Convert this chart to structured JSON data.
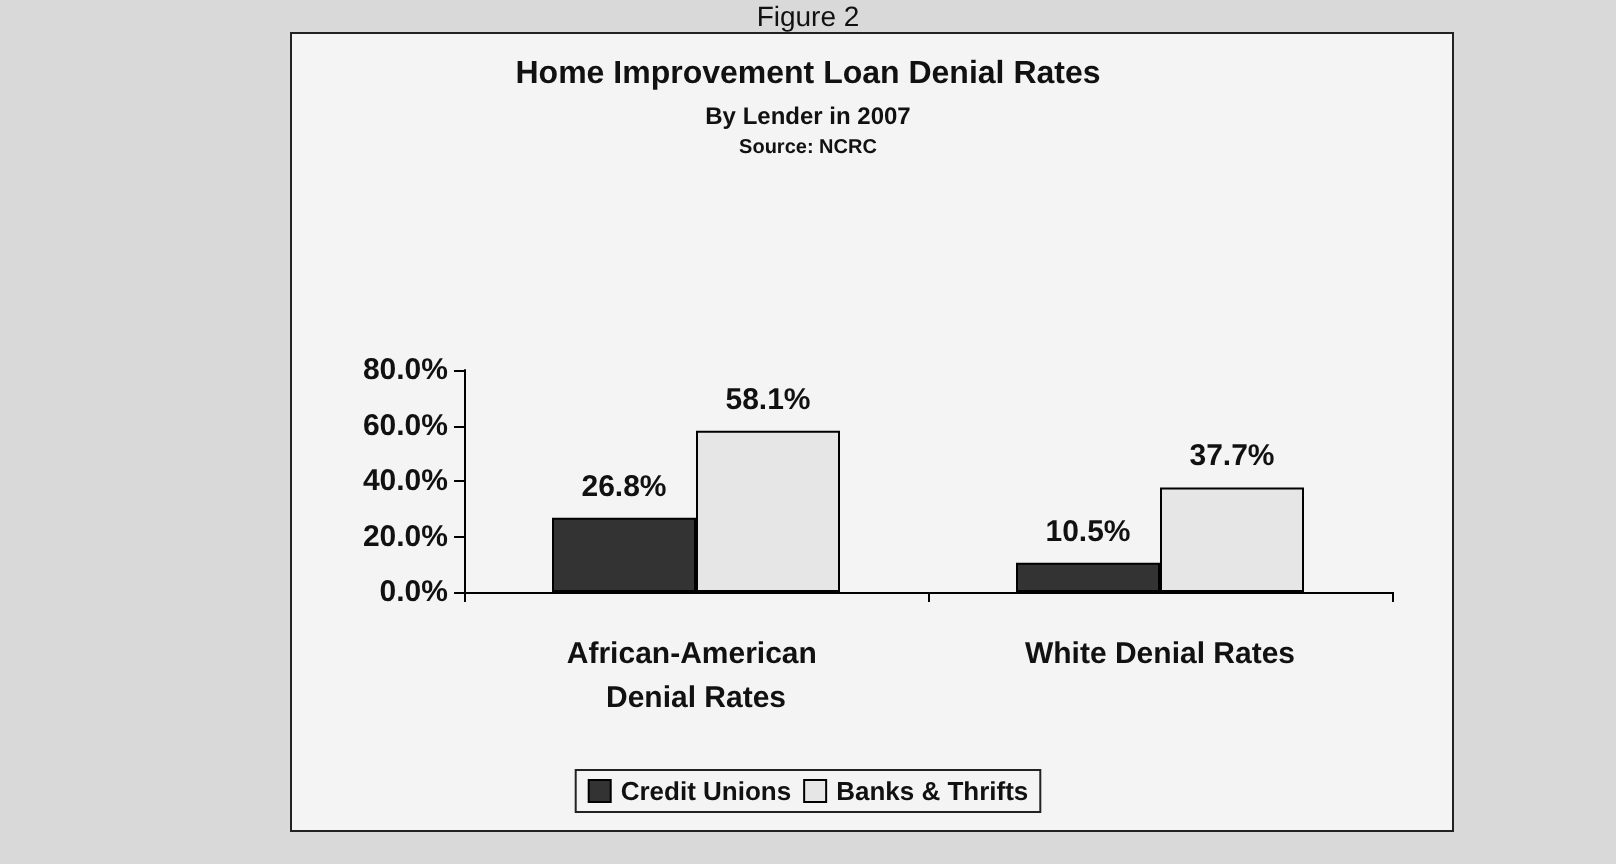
{
  "chart_data": {
    "type": "bar",
    "title": "Home Improvement Loan Denial Rates",
    "subtitle": "By Lender in 2007",
    "annotations": [
      "Figure 2",
      "Source: NCRC"
    ],
    "categories": [
      "African-American Denial Rates",
      "White Denial Rates"
    ],
    "series": [
      {
        "name": "Credit Unions",
        "color": "#333333",
        "values": [
          26.8,
          10.5
        ],
        "value_labels": [
          "26.8%",
          "10.5%"
        ]
      },
      {
        "name": "Banks & Thrifts",
        "color": "#e6e6e6",
        "values": [
          58.1,
          37.7
        ],
        "value_labels": [
          "58.1%",
          "37.7%"
        ]
      }
    ],
    "ylim": [
      0,
      80
    ],
    "yticks": [
      {
        "value": 0,
        "label": "0.0%"
      },
      {
        "value": 20,
        "label": "20.0%"
      },
      {
        "value": 40,
        "label": "40.0%"
      },
      {
        "value": 60,
        "label": "60.0%"
      },
      {
        "value": 80,
        "label": "80.0%"
      }
    ],
    "grid": false,
    "legend": "bottom"
  }
}
